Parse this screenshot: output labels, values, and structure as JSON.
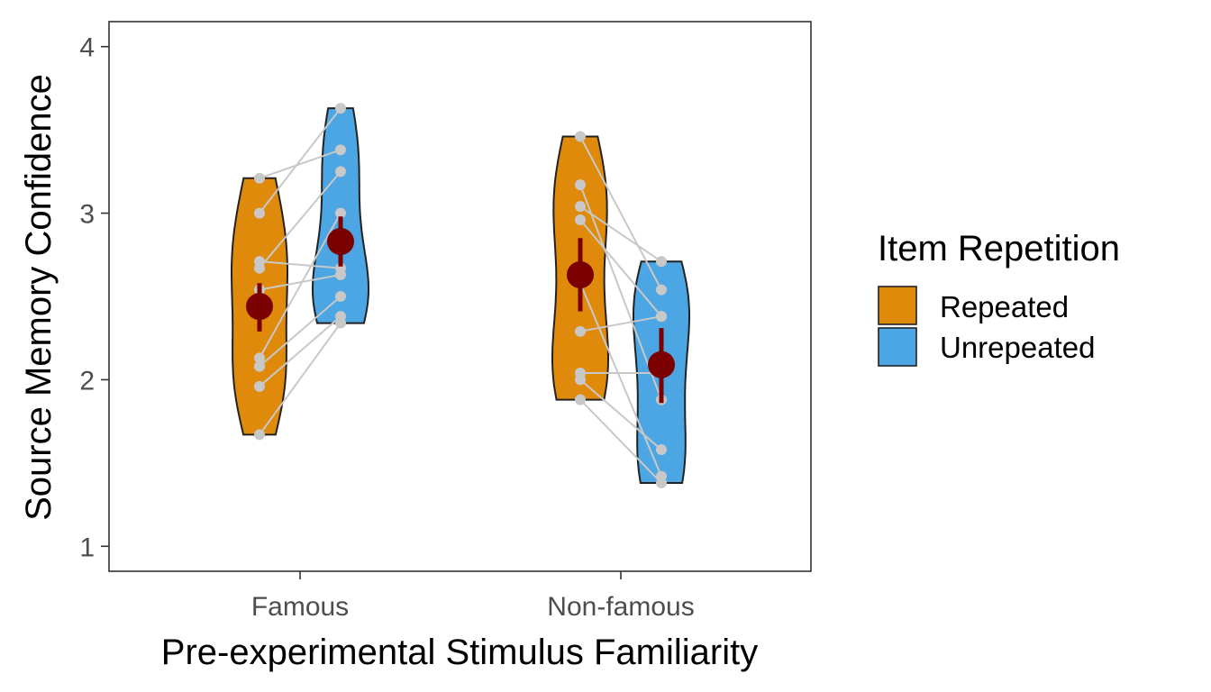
{
  "chart_data": {
    "type": "violin",
    "xlabel": "Pre-experimental Stimulus Familiarity",
    "ylabel": "Source Memory Confidence",
    "categories": [
      "Famous",
      "Non-famous"
    ],
    "ylim": [
      0.85,
      4.15
    ],
    "yticks": [
      1,
      2,
      3,
      4
    ],
    "ytick_labels": [
      "1",
      "2",
      "3",
      "4"
    ],
    "grid": false,
    "legend": {
      "title": "Item Repetition",
      "position": "right",
      "entries": [
        "Repeated",
        "Unrepeated"
      ]
    },
    "colors": {
      "Repeated": "#E08A0B",
      "Unrepeated": "#4BA6E3",
      "mean_point": "#7B0000",
      "participant_line": "#C8C8C8",
      "participant_point": "#C8C8C8",
      "outline": "#222222"
    },
    "series": [
      {
        "name": "Repeated",
        "groups": {
          "Famous": {
            "min": 1.67,
            "max": 3.21,
            "points": [
              1.67,
              1.96,
              2.08,
              2.13,
              2.54,
              2.67,
              2.71,
              3.0,
              3.21
            ],
            "mean": 2.44,
            "ci": [
              2.29,
              2.58
            ]
          },
          "Non-famous": {
            "min": 1.88,
            "max": 3.46,
            "points": [
              1.88,
              2.0,
              2.04,
              2.29,
              2.58,
              2.96,
              3.04,
              3.17,
              3.46
            ],
            "mean": 2.63,
            "ci": [
              2.41,
              2.85
            ]
          }
        }
      },
      {
        "name": "Unrepeated",
        "groups": {
          "Famous": {
            "min": 2.34,
            "max": 3.63,
            "points": [
              2.34,
              2.38,
              2.5,
              2.63,
              2.67,
              3.0,
              3.25,
              3.38,
              3.63
            ],
            "mean": 2.83,
            "ci": [
              2.68,
              2.98
            ]
          },
          "Non-famous": {
            "min": 1.38,
            "max": 2.71,
            "points": [
              1.38,
              1.42,
              1.58,
              1.88,
              2.04,
              2.38,
              2.38,
              2.54,
              2.71
            ],
            "mean": 2.09,
            "ci": [
              1.86,
              2.31
            ]
          }
        }
      }
    ],
    "participant_pairs": {
      "Famous": [
        [
          3.21,
          3.38
        ],
        [
          3.0,
          3.63
        ],
        [
          2.71,
          2.67
        ],
        [
          2.67,
          3.25
        ],
        [
          2.54,
          2.63
        ],
        [
          2.13,
          3.0
        ],
        [
          2.08,
          2.5
        ],
        [
          1.96,
          2.38
        ],
        [
          1.67,
          2.34
        ]
      ],
      "Non-famous": [
        [
          3.46,
          2.54
        ],
        [
          3.17,
          1.88
        ],
        [
          3.04,
          2.71
        ],
        [
          2.96,
          2.38
        ],
        [
          2.58,
          1.42
        ],
        [
          2.29,
          2.38
        ],
        [
          2.04,
          2.04
        ],
        [
          2.0,
          1.58
        ],
        [
          1.88,
          1.38
        ]
      ]
    }
  }
}
